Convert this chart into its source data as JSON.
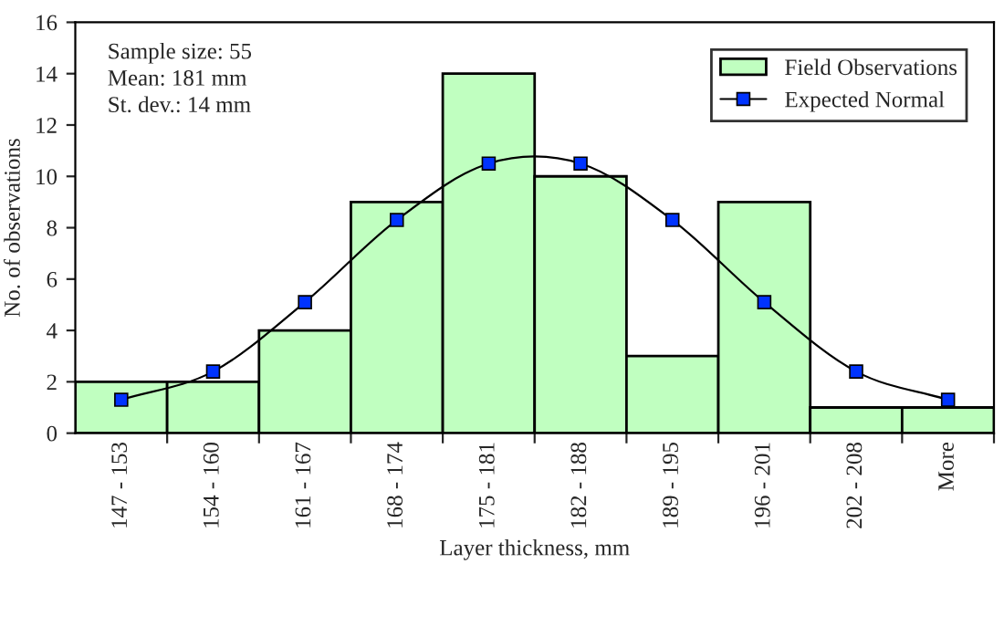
{
  "chart_data": {
    "type": "bar",
    "xlabel": "Layer thickness, mm",
    "ylabel": "No. of observations",
    "categories": [
      "147 - 153",
      "154 - 160",
      "161 - 167",
      "168 - 174",
      "175 - 181",
      "182 - 188",
      "189 - 195",
      "196 - 201",
      "202 - 208",
      "More"
    ],
    "series": [
      {
        "name": "Field Observations",
        "color": "#c0ffc0",
        "values": [
          2,
          2,
          4,
          9,
          14,
          10,
          3,
          9,
          1,
          1
        ]
      },
      {
        "name": "Expected Normal",
        "type": "line",
        "color": "#0033ff",
        "marker": "square",
        "values": [
          1.3,
          2.4,
          5.1,
          8.3,
          10.5,
          10.5,
          8.3,
          5.1,
          2.4,
          1.3
        ]
      }
    ],
    "ylim": [
      0,
      16
    ],
    "yticks": [
      0,
      2,
      4,
      6,
      8,
      10,
      12,
      14,
      16
    ],
    "annotations": [
      "Sample size: 55",
      "Mean: 181 mm",
      "St. dev.: 14 mm"
    ],
    "legend": "top right",
    "grid": false
  }
}
